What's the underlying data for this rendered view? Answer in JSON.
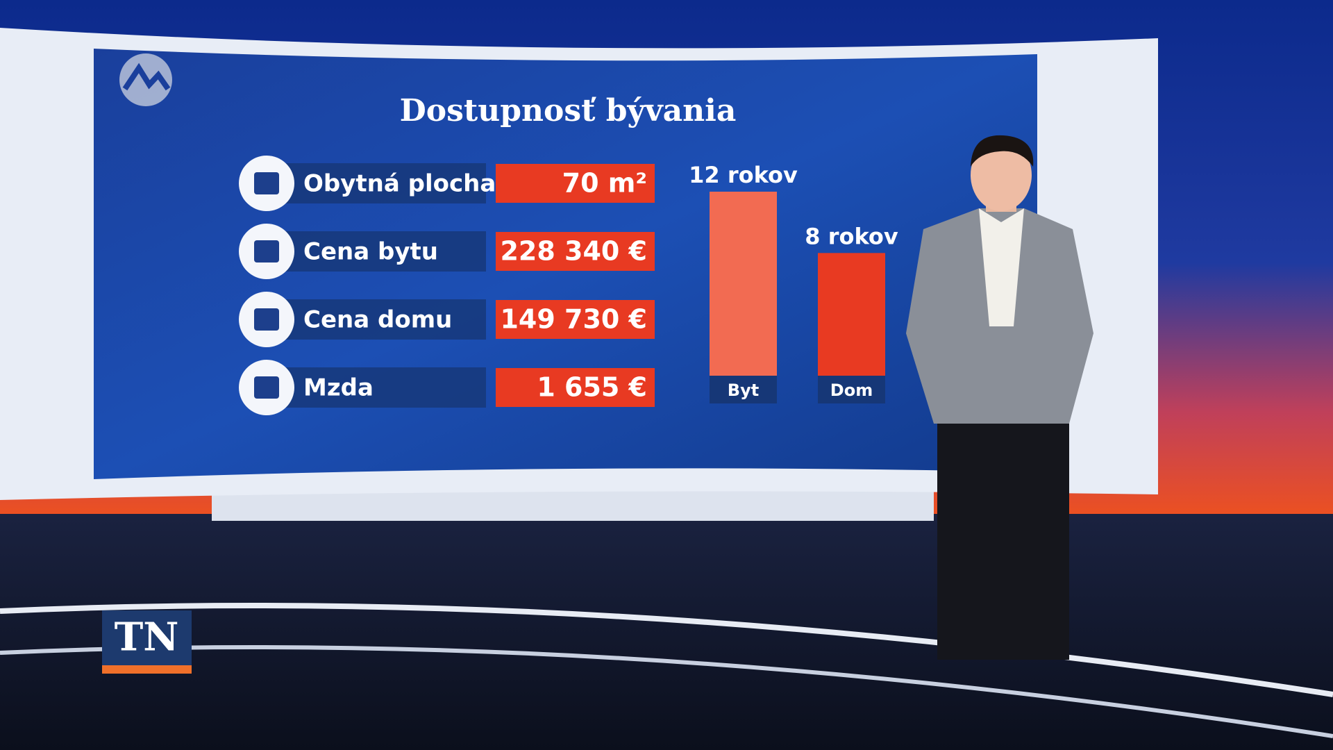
{
  "channel_logo": "TN",
  "chart_data": {
    "type": "bar",
    "title": "Dostupnosť bývania",
    "rows": [
      {
        "label": "Obytná plocha",
        "value": "70 m²"
      },
      {
        "label": "Cena bytu",
        "value": "228 340 €"
      },
      {
        "label": "Cena domu",
        "value": "149 730 €"
      },
      {
        "label": "Mzda",
        "value": "1 655 €"
      }
    ],
    "categories": [
      "Byt",
      "Dom"
    ],
    "values": [
      12,
      8
    ],
    "value_labels": [
      "12 rokov",
      "8 rokov"
    ],
    "colors": [
      "#f26b52",
      "#e83a22"
    ]
  }
}
